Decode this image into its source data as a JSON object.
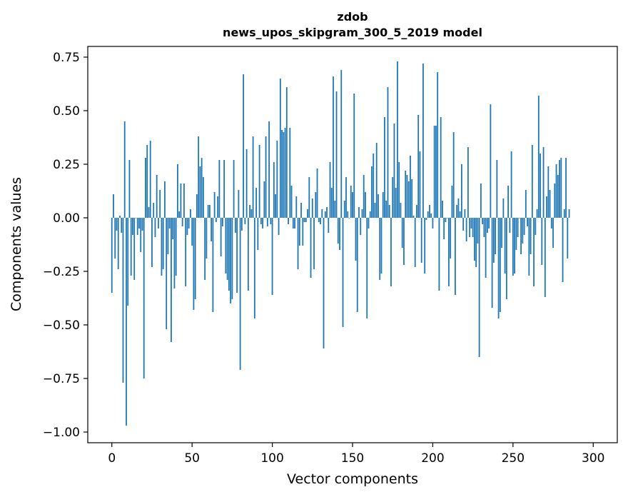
{
  "chart_data": {
    "type": "bar",
    "title": "zdob",
    "subtitle": "news_upos_skipgram_300_5_2019 model",
    "xlabel": "Vector components",
    "ylabel": "Components values",
    "xlim": [
      -15,
      315
    ],
    "ylim": [
      -1.05,
      0.8
    ],
    "xticks": [
      0,
      50,
      100,
      150,
      200,
      250,
      300
    ],
    "xtick_labels": [
      "0",
      "50",
      "100",
      "150",
      "200",
      "250",
      "300"
    ],
    "yticks": [
      0.75,
      0.5,
      0.25,
      0.0,
      -0.25,
      -0.5,
      -0.75,
      -1.0
    ],
    "ytick_labels": [
      "0.75",
      "0.50",
      "0.25",
      "0.00",
      "−0.25",
      "−0.50",
      "−0.75",
      "−1.00"
    ],
    "bar_color": "#1f77b4",
    "grid": false,
    "values": [
      -0.35,
      0.11,
      -0.19,
      -0.06,
      -0.24,
      0.01,
      -0.07,
      -0.77,
      0.45,
      -0.97,
      -0.41,
      0.27,
      -0.27,
      -0.08,
      -0.29,
      0.0,
      -0.08,
      -0.05,
      -0.16,
      -0.06,
      -0.75,
      0.28,
      0.34,
      0.05,
      0.36,
      -0.23,
      0.07,
      -0.09,
      0.2,
      -0.05,
      0.13,
      -0.27,
      -0.24,
      0.17,
      -0.52,
      -0.17,
      -0.05,
      -0.58,
      -0.1,
      -0.33,
      -0.27,
      0.25,
      0.03,
      0.16,
      -0.04,
      0.16,
      -0.32,
      -0.08,
      -0.05,
      0.04,
      -0.13,
      -0.43,
      -0.38,
      0.11,
      0.38,
      0.24,
      0.28,
      0.19,
      -0.29,
      -0.19,
      0.06,
      0.06,
      -0.11,
      -0.44,
      0.12,
      -0.02,
      0.1,
      0.27,
      -0.18,
      -0.04,
      0.27,
      -0.26,
      -0.29,
      -0.34,
      -0.4,
      -0.38,
      0.27,
      -0.07,
      -0.35,
      0.13,
      -0.71,
      -0.06,
      0.67,
      -0.03,
      0.32,
      -0.34,
      0.06,
      0.04,
      0.38,
      -0.47,
      0.14,
      -0.15,
      0.34,
      -0.03,
      -0.05,
      0.17,
      0.38,
      -0.04,
      0.45,
      -0.03,
      -0.36,
      0.26,
      0.11,
      0.36,
      -0.08,
      0.65,
      0.41,
      0.4,
      0.42,
      0.61,
      -0.03,
      0.42,
      0.15,
      -0.05,
      -0.05,
      0.1,
      -0.24,
      -0.13,
      0.07,
      -0.13,
      -0.02,
      -0.02,
      0.04,
      0.19,
      -0.28,
      0.09,
      -0.24,
      0.12,
      0.23,
      -0.02,
      -0.03,
      0.04,
      -0.61,
      0.03,
      0.05,
      -0.07,
      0.26,
      0.14,
      0.66,
      0.08,
      0.59,
      -0.12,
      -0.15,
      0.69,
      -0.51,
      0.08,
      0.19,
      0.03,
      0.0,
      0.15,
      0.12,
      0.58,
      -0.2,
      -0.44,
      0.05,
      -0.08,
      0.04,
      0.2,
      0.12,
      -0.47,
      -0.05,
      0.03,
      0.24,
      0.3,
      0.07,
      0.35,
      0.11,
      -0.29,
      -0.26,
      0.12,
      0.47,
      0.08,
      0.61,
      0.06,
      -0.32,
      0.19,
      0.44,
      0.14,
      0.73,
      0.26,
      0.07,
      -0.14,
      -0.22,
      0.22,
      0.2,
      0.17,
      0.29,
      0.18,
      0.01,
      -0.23,
      0.06,
      0.48,
      0.31,
      -0.21,
      0.72,
      -0.26,
      -0.01,
      0.03,
      0.06,
      0.02,
      -0.05,
      0.43,
      0.43,
      0.68,
      -0.34,
      0.47,
      0.08,
      -0.1,
      -0.02,
      0.0,
      -0.32,
      -0.19,
      0.15,
      0.4,
      -0.36,
      0.06,
      0.09,
      0.03,
      0.25,
      -0.06,
      0.04,
      -0.11,
      0.33,
      -0.09,
      -0.05,
      -0.09,
      -0.2,
      -0.23,
      -0.12,
      -0.65,
      0.16,
      -0.03,
      -0.09,
      -0.28,
      -0.07,
      -0.05,
      0.53,
      -0.42,
      -0.21,
      -0.17,
      0.27,
      -0.47,
      -0.44,
      -0.14,
      0.09,
      -0.26,
      -0.38,
      0.15,
      -0.07,
      0.31,
      -0.27,
      -0.26,
      -0.15,
      -0.09,
      0.0,
      -0.17,
      -0.12,
      -0.08,
      0.13,
      -0.04,
      -0.27,
      -0.17,
      0.34,
      -0.32,
      -0.08,
      0.04,
      0.57,
      0.3,
      -0.22,
      0.33,
      -0.37,
      0.1,
      0.24,
      0.13,
      -0.05,
      -0.14,
      0.16,
      0.25,
      0.2,
      0.27,
      0.28,
      -0.3,
      0.04,
      0.28,
      -0.19,
      0.04
    ]
  }
}
